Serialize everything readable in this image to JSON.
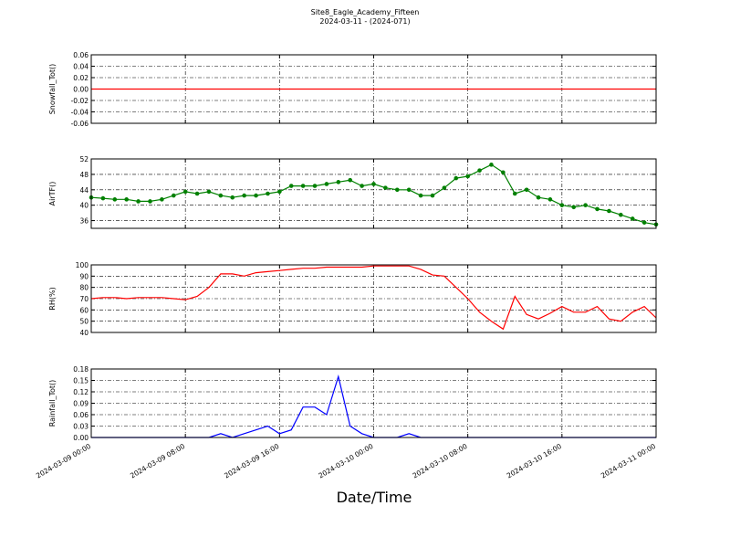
{
  "chart_data": {
    "type": "line",
    "title": "Site8_Eagle_Academy_Fifteen",
    "subtitle": "2024-03-11 - (2024-071)",
    "xlabel": "Date/Time",
    "x": [
      "2024-03-09 00:00",
      "2024-03-09 01:00",
      "2024-03-09 02:00",
      "2024-03-09 03:00",
      "2024-03-09 04:00",
      "2024-03-09 05:00",
      "2024-03-09 06:00",
      "2024-03-09 07:00",
      "2024-03-09 08:00",
      "2024-03-09 09:00",
      "2024-03-09 10:00",
      "2024-03-09 11:00",
      "2024-03-09 12:00",
      "2024-03-09 13:00",
      "2024-03-09 14:00",
      "2024-03-09 15:00",
      "2024-03-09 16:00",
      "2024-03-09 17:00",
      "2024-03-09 18:00",
      "2024-03-09 19:00",
      "2024-03-09 20:00",
      "2024-03-09 21:00",
      "2024-03-09 22:00",
      "2024-03-09 23:00",
      "2024-03-10 00:00",
      "2024-03-10 01:00",
      "2024-03-10 02:00",
      "2024-03-10 03:00",
      "2024-03-10 04:00",
      "2024-03-10 05:00",
      "2024-03-10 06:00",
      "2024-03-10 07:00",
      "2024-03-10 08:00",
      "2024-03-10 09:00",
      "2024-03-10 10:00",
      "2024-03-10 11:00",
      "2024-03-10 12:00",
      "2024-03-10 13:00",
      "2024-03-10 14:00",
      "2024-03-10 15:00",
      "2024-03-10 16:00",
      "2024-03-10 17:00",
      "2024-03-10 18:00",
      "2024-03-10 19:00",
      "2024-03-10 20:00",
      "2024-03-10 21:00",
      "2024-03-10 22:00",
      "2024-03-10 23:00",
      "2024-03-11 00:00"
    ],
    "xlim": [
      "2024-03-09 00:00",
      "2024-03-11 00:00"
    ],
    "xticks": [
      "2024-03-09 00:00",
      "2024-03-09 08:00",
      "2024-03-09 16:00",
      "2024-03-10 00:00",
      "2024-03-10 08:00",
      "2024-03-10 16:00",
      "2024-03-11 00:00"
    ],
    "grid": true,
    "panels": [
      {
        "ylabel": "Snowfall_Tot()",
        "ylim": [
          -0.06,
          0.06
        ],
        "yticks": [
          -0.06,
          -0.04,
          -0.02,
          {
            "value": 0,
            "label": "0.00"
          },
          0.02,
          0.04,
          0.06
        ],
        "markers": false,
        "series": [
          {
            "color": "#ff0000",
            "values": [
              0,
              0,
              0,
              0,
              0,
              0,
              0,
              0,
              0,
              0,
              0,
              0,
              0,
              0,
              0,
              0,
              0,
              0,
              0,
              0,
              0,
              0,
              0,
              0,
              0,
              0,
              0,
              0,
              0,
              0,
              0,
              0,
              0,
              0,
              0,
              0,
              0,
              0,
              0,
              0,
              0,
              0,
              0,
              0,
              0,
              0,
              0,
              0,
              0
            ]
          }
        ]
      },
      {
        "ylabel": "AirTF()",
        "ylim": [
          34,
          52
        ],
        "yticks": [
          36,
          40,
          44,
          48,
          52
        ],
        "markers": true,
        "series": [
          {
            "color": "#008000",
            "values": [
              42,
              41.8,
              41.5,
              41.5,
              41,
              41,
              41.5,
              42.5,
              43.5,
              43,
              43.5,
              42.5,
              42,
              42.5,
              42.5,
              43,
              43.5,
              45,
              45,
              45,
              45.5,
              46,
              46.5,
              45,
              45.5,
              44.5,
              44,
              44,
              42.5,
              42.5,
              44.5,
              47,
              47.5,
              49,
              50.5,
              48.5,
              43,
              44,
              42,
              41.5,
              40,
              39.5,
              40,
              39,
              38.5,
              37.5,
              36.5,
              35.5,
              35
            ]
          }
        ]
      },
      {
        "ylabel": "RH(%)",
        "ylim": [
          40,
          100
        ],
        "yticks": [
          40,
          50,
          60,
          70,
          80,
          90,
          100
        ],
        "markers": false,
        "series": [
          {
            "color": "#ff0000",
            "values": [
              70,
              71,
              71,
              70,
              71,
              71,
              71,
              70,
              69,
              72,
              80,
              92,
              92,
              90,
              93,
              94,
              95,
              96,
              97,
              97,
              98,
              98,
              98,
              98,
              99,
              99,
              99,
              99,
              96,
              91,
              90,
              80,
              70,
              58,
              50,
              43,
              72,
              56,
              52,
              57,
              63,
              58,
              58,
              63,
              52,
              50,
              58,
              63,
              53
            ]
          }
        ]
      },
      {
        "ylabel": "Rainfall_Tot()",
        "ylim": [
          0,
          0.18
        ],
        "yticks": [
          {
            "value": 0,
            "label": "0.00"
          },
          0.03,
          0.06,
          0.09,
          0.12,
          0.15,
          0.18
        ],
        "markers": false,
        "series": [
          {
            "color": "#0000ff",
            "values": [
              0,
              0,
              0,
              0,
              0,
              0,
              0,
              0,
              0,
              0,
              0,
              0.01,
              0,
              0.01,
              0.02,
              0.03,
              0.01,
              0.02,
              0.08,
              0.08,
              0.06,
              0.16,
              0.03,
              0.01,
              0,
              0,
              0,
              0.01,
              0,
              0,
              0,
              0,
              0,
              0,
              0,
              0,
              0,
              0,
              0,
              0,
              0,
              0,
              0,
              0,
              0,
              0,
              0,
              0,
              0
            ]
          }
        ]
      }
    ]
  }
}
